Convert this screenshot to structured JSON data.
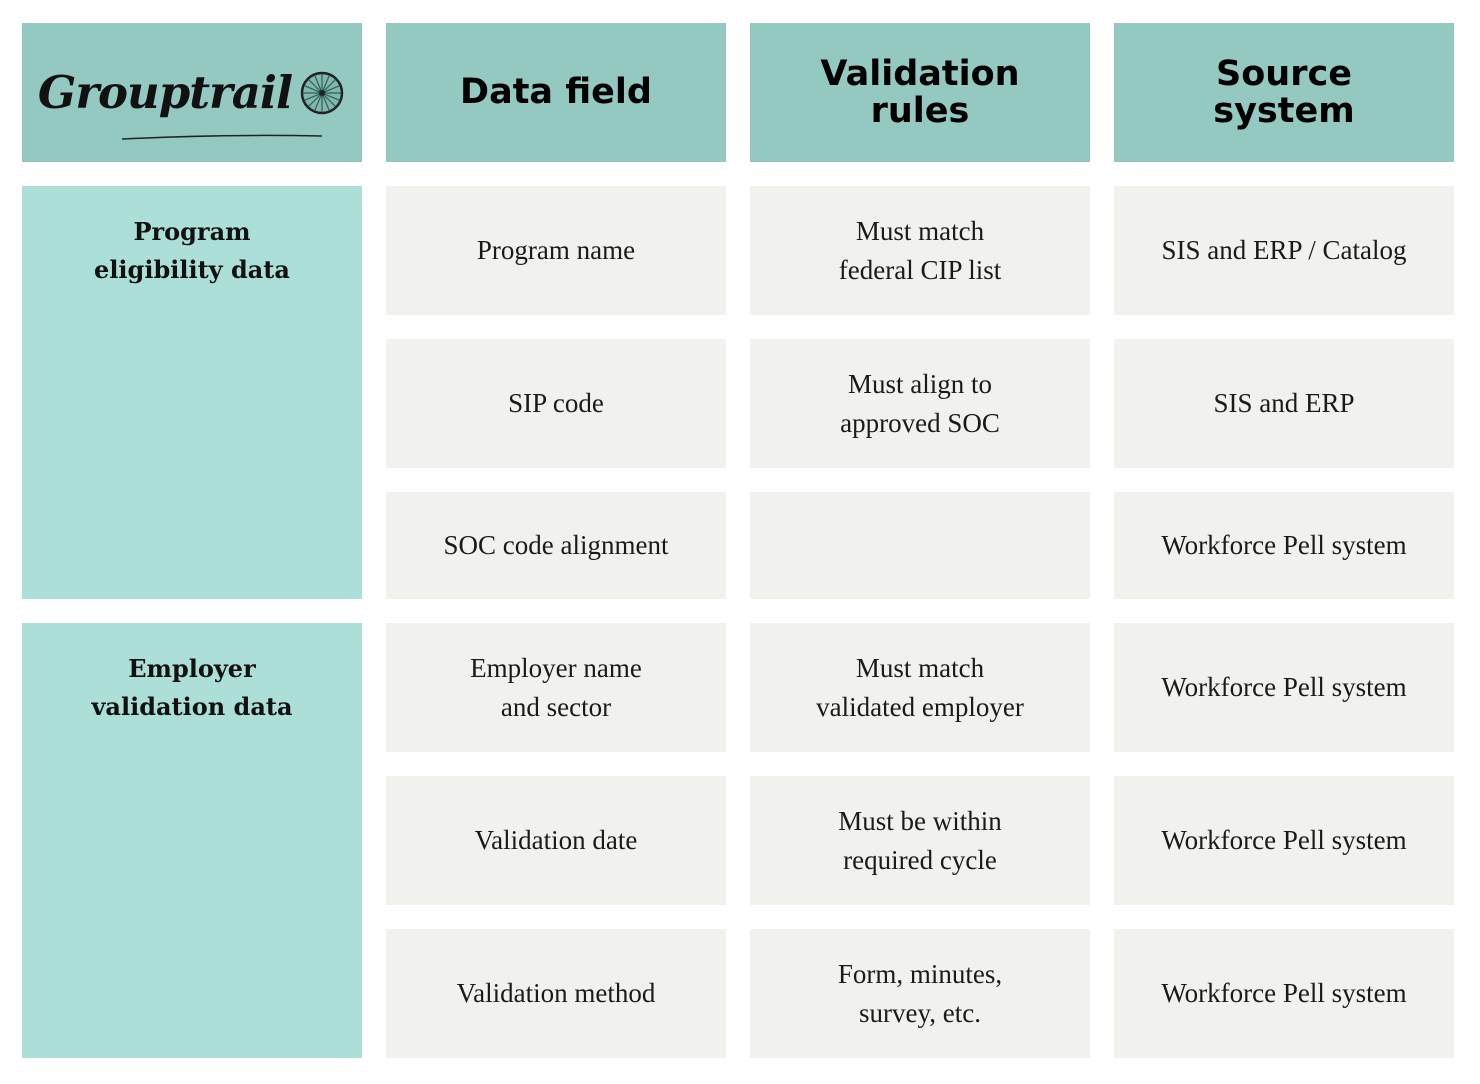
{
  "brand": {
    "name": "Grouptrail"
  },
  "header": {
    "data_field": "Data field",
    "validation_rules": "Validation\nrules",
    "source_system": "Source\nsystem"
  },
  "groups": [
    {
      "label": "Program\neligibility data"
    },
    {
      "label": "Employer\nvalidation data"
    }
  ],
  "rows": [
    {
      "field": "Program name",
      "rule": "Must match\nfederal CIP list",
      "source": "SIS and ERP / Catalog"
    },
    {
      "field": "SIP code",
      "rule": "Must align to\napproved SOC",
      "source": "SIS and ERP"
    },
    {
      "field": "SOC code alignment",
      "rule": "",
      "source": "Workforce Pell system"
    },
    {
      "field": "Employer name\nand sector",
      "rule": "Must match\nvalidated employer",
      "source": "Workforce Pell system"
    },
    {
      "field": "Validation date",
      "rule": "Must be within\nrequired cycle",
      "source": "Workforce Pell system"
    },
    {
      "field": "Validation method",
      "rule": "Form, minutes,\nsurvey, etc.",
      "source": "Workforce Pell system"
    }
  ],
  "colors": {
    "header": "#93c9c0",
    "group": "#abdfd8",
    "cell": "#f1f1ed"
  }
}
